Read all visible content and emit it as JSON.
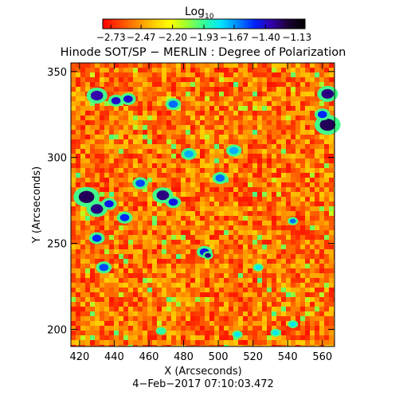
{
  "chart_data": {
    "type": "heatmap",
    "title": "Hinode SOT/SP − MERLIN : Degree of Polarization",
    "xlabel": "X (Arcseconds)",
    "ylabel": "Y (Arcseconds)",
    "date_label": "4−Feb−2017 07:10:03.472",
    "xlim": [
      415,
      567
    ],
    "ylim": [
      190,
      355
    ],
    "x_ticks": [
      420,
      440,
      460,
      480,
      500,
      520,
      540,
      560
    ],
    "y_ticks": [
      200,
      250,
      300,
      350
    ],
    "colorbar": {
      "label": "Log",
      "label_sub": "10",
      "range": [
        -2.8,
        -1.06
      ],
      "ticks": [
        "−2.73",
        "−2.47",
        "−2.20",
        "−1.93",
        "−1.67",
        "−1.40",
        "−1.13"
      ],
      "colormap": [
        "#ff0000",
        "#ff4400",
        "#ff8800",
        "#ffcc00",
        "#ffff00",
        "#99ff33",
        "#33ff99",
        "#00e5ff",
        "#0088ff",
        "#0022ff",
        "#3300aa",
        "#1a0033",
        "#000000"
      ]
    },
    "background_level": -2.55,
    "features": [
      {
        "x": 430,
        "y": 336,
        "size": 4,
        "level": -1.35
      },
      {
        "x": 441,
        "y": 333,
        "size": 3,
        "level": -1.4
      },
      {
        "x": 448,
        "y": 334,
        "size": 3,
        "level": -1.4
      },
      {
        "x": 474,
        "y": 331,
        "size": 3,
        "level": -1.6
      },
      {
        "x": 563,
        "y": 337,
        "size": 4,
        "level": -1.3
      },
      {
        "x": 563,
        "y": 319,
        "size": 5,
        "level": -1.25
      },
      {
        "x": 560,
        "y": 325,
        "size": 3,
        "level": -1.5
      },
      {
        "x": 483,
        "y": 302,
        "size": 3,
        "level": -1.7
      },
      {
        "x": 509,
        "y": 304,
        "size": 3,
        "level": -1.7
      },
      {
        "x": 424,
        "y": 277,
        "size": 5,
        "level": -1.25
      },
      {
        "x": 430,
        "y": 270,
        "size": 4,
        "level": -1.3
      },
      {
        "x": 437,
        "y": 273,
        "size": 3,
        "level": -1.45
      },
      {
        "x": 455,
        "y": 285,
        "size": 3,
        "level": -1.55
      },
      {
        "x": 468,
        "y": 278,
        "size": 4,
        "level": -1.3
      },
      {
        "x": 474,
        "y": 274,
        "size": 3,
        "level": -1.45
      },
      {
        "x": 501,
        "y": 288,
        "size": 3,
        "level": -1.6
      },
      {
        "x": 446,
        "y": 265,
        "size": 3,
        "level": -1.5
      },
      {
        "x": 430,
        "y": 253,
        "size": 3,
        "level": -1.5
      },
      {
        "x": 492,
        "y": 245,
        "size": 3,
        "level": -1.45
      },
      {
        "x": 494,
        "y": 243,
        "size": 2,
        "level": -1.3
      },
      {
        "x": 434,
        "y": 236,
        "size": 3,
        "level": -1.55
      },
      {
        "x": 543,
        "y": 263,
        "size": 2,
        "level": -1.6
      },
      {
        "x": 523,
        "y": 236,
        "size": 2,
        "level": -1.8
      },
      {
        "x": 533,
        "y": 198,
        "size": 2,
        "level": -1.8
      },
      {
        "x": 511,
        "y": 197,
        "size": 2,
        "level": -1.8
      },
      {
        "x": 467,
        "y": 199,
        "size": 2,
        "level": -1.9
      },
      {
        "x": 543,
        "y": 203,
        "size": 2,
        "level": -1.8
      }
    ]
  }
}
